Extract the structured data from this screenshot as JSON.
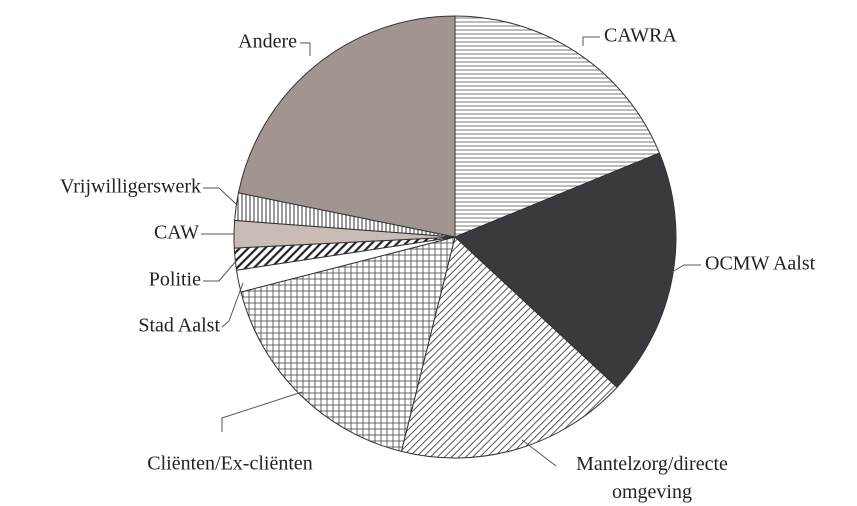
{
  "chart_data": {
    "type": "pie",
    "categories": [
      "CAWRA",
      "OCMW Aalst",
      "Mantelzorg/directe omgeving",
      "Cliënten/Ex-cliënten",
      "Stad Aalst",
      "Politie",
      "CAW",
      "Vrijwilligerswerk",
      "Andere"
    ],
    "values": [
      18.8,
      18.1,
      17.0,
      17.1,
      1.6,
      1.6,
      2.0,
      2.0,
      21.8
    ],
    "colors": [
      "#ffffff",
      "#3a393d",
      "#ffffff",
      "#ffffff",
      "#ffffff",
      "#ffffff",
      "#c9bbb6",
      "#ffffff",
      "#a09591"
    ],
    "patterns": [
      "horizontal",
      "solid",
      "diagonal",
      "grid",
      "solid",
      "diagonal-bold",
      "solid",
      "vertical",
      "solid"
    ]
  }
}
